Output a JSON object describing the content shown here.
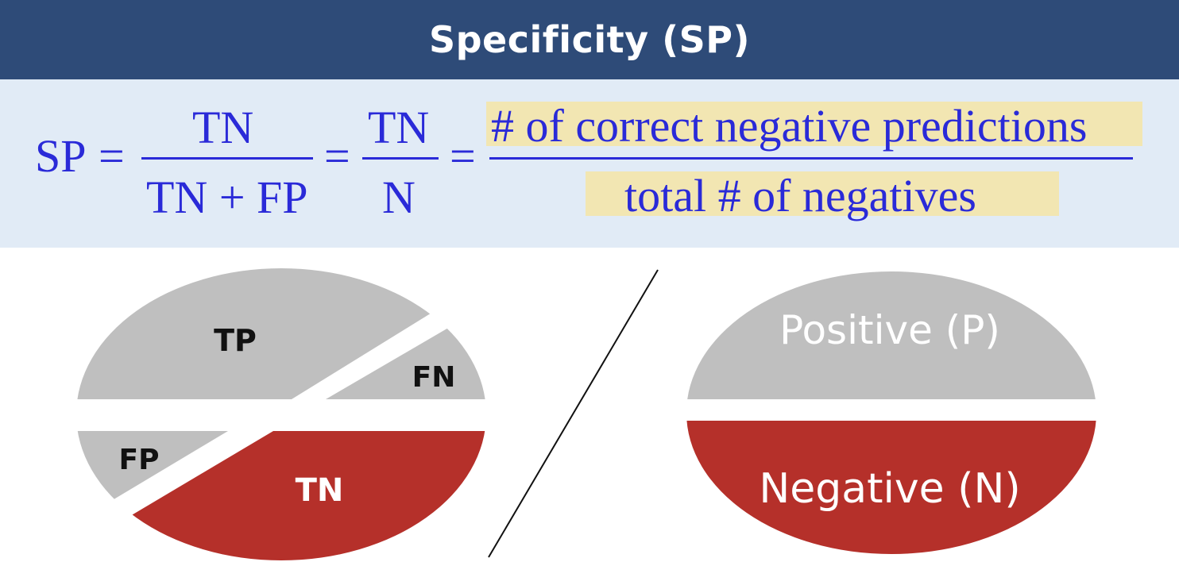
{
  "title": "Specificity (SP)",
  "formula": {
    "lhs": "SP",
    "eq": "=",
    "frac1": {
      "numerator": "TN",
      "denominator": "TN + FP"
    },
    "frac2": {
      "numerator": "TN",
      "denominator": "N"
    },
    "frac3": {
      "numerator": "# of correct negative predictions",
      "denominator": "total # of negatives"
    }
  },
  "colors": {
    "title_bg": "#2e4b78",
    "formula_bg": "#e1ebf6",
    "formula_text": "#2a2ad8",
    "highlight": "#f2e6b2",
    "gray": "#bfbfbf",
    "red": "#b5302a"
  },
  "pie": {
    "slices": [
      {
        "key": "tp",
        "label": "TP",
        "color": "gray"
      },
      {
        "key": "fn",
        "label": "FN",
        "color": "gray"
      },
      {
        "key": "fp",
        "label": "FP",
        "color": "gray"
      },
      {
        "key": "tn",
        "label": "TN",
        "color": "red"
      }
    ]
  },
  "ellipse": {
    "top_label": "Positive (P)",
    "bottom_label": "Negative (N)"
  }
}
